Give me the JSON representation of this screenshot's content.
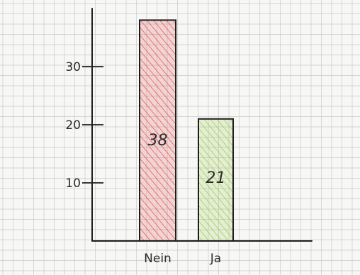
{
  "chart_data": {
    "type": "bar",
    "categories": [
      "Nein",
      "Ja"
    ],
    "values": [
      38,
      21
    ],
    "data_labels": [
      "38",
      "21"
    ],
    "y_ticks": [
      10,
      20,
      30
    ],
    "y_tick_labels": [
      "10",
      "20",
      "30"
    ],
    "ylim": [
      0,
      40
    ],
    "grid": true,
    "colors": {
      "bar_colors": [
        "#e0363a",
        "#8fc63a"
      ],
      "axis": "#1e1e1e",
      "grid": "#c9c9c9",
      "paper": "#f7f7f6"
    }
  }
}
